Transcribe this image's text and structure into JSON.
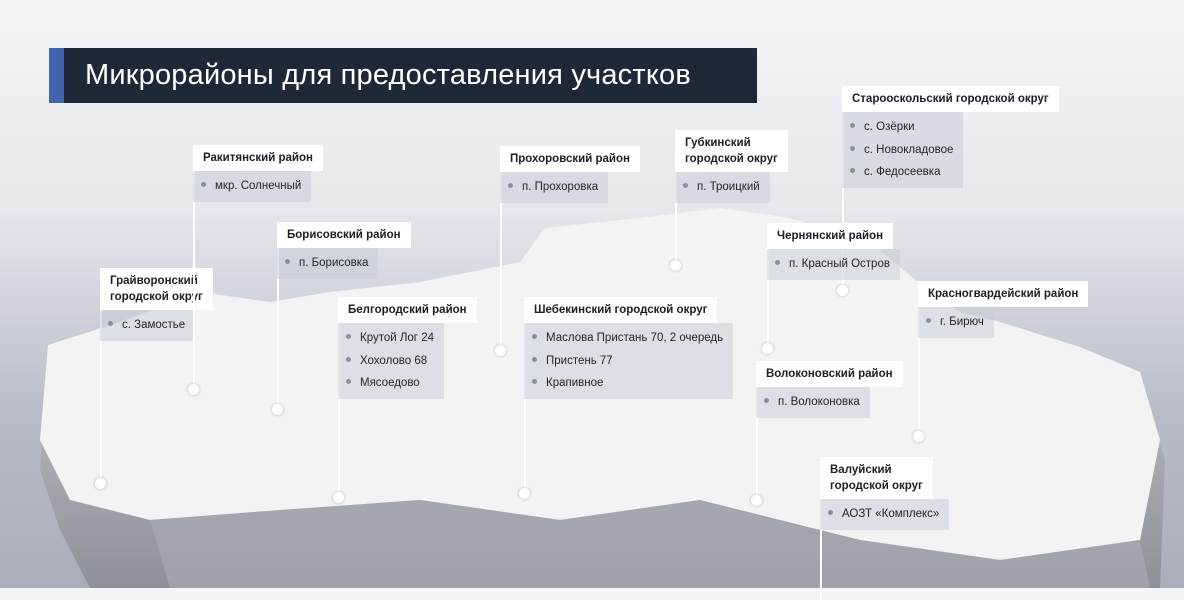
{
  "title": "Микрорайоны для предоставления участков",
  "colors": {
    "title_bg": "#1f2837",
    "accent": "#4264ad"
  },
  "callouts": [
    {
      "name": "Грайворонский городской округ",
      "lines": [
        "Грайворонский",
        "городской округ"
      ],
      "items": [
        "с. Замостье"
      ]
    },
    {
      "name": "Ракитянский район",
      "lines": [
        "Ракитянский район"
      ],
      "items": [
        "мкр. Солнечный"
      ]
    },
    {
      "name": "Борисовский район",
      "lines": [
        "Борисовский район"
      ],
      "items": [
        "п. Борисовка"
      ]
    },
    {
      "name": "Белгородский район",
      "lines": [
        "Белгородский район"
      ],
      "items": [
        "Крутой Лог 24",
        "Хохолово 68",
        "Мясоедово"
      ]
    },
    {
      "name": "Прохоровский район",
      "lines": [
        "Прохоровский район"
      ],
      "items": [
        "п. Прохоровка"
      ]
    },
    {
      "name": "Шебекинский городской округ",
      "lines": [
        "Шебекинский городской округ"
      ],
      "items": [
        "Маслова Пристань 70, 2 очередь",
        "Пристень 77",
        "Крапивное"
      ]
    },
    {
      "name": "Губкинский городской округ",
      "lines": [
        "Губкинский",
        "городской округ"
      ],
      "items": [
        "п. Троицкий"
      ]
    },
    {
      "name": "Старооскольский городской округ",
      "lines": [
        "Старооскольский городской округ"
      ],
      "items": [
        "с. Озёрки",
        "с. Новокладовое",
        "с. Федосеевка"
      ]
    },
    {
      "name": "Чернянский район",
      "lines": [
        "Чернянский район"
      ],
      "items": [
        "п. Красный Остров"
      ]
    },
    {
      "name": "Красногвардейский район",
      "lines": [
        "Красногвардейский район"
      ],
      "items": [
        "г. Бирюч"
      ]
    },
    {
      "name": "Волоконовский район",
      "lines": [
        "Волоконовский район"
      ],
      "items": [
        "п. Волоконовка"
      ]
    },
    {
      "name": "Валуйский городской округ",
      "lines": [
        "Валуйский",
        "городской округ"
      ],
      "items": [
        "АОЗТ «Комплекс»"
      ]
    }
  ]
}
